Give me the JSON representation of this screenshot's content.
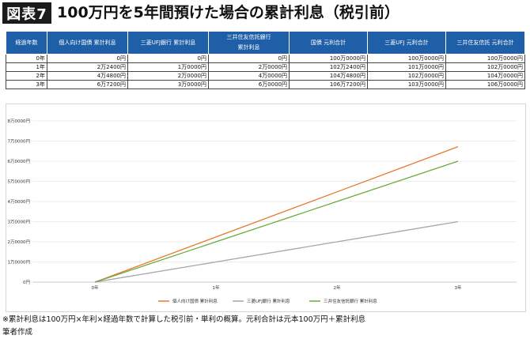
{
  "header": {
    "badge": "図表7",
    "title": "100万円を5年間預けた場合の累計利息（税引前）"
  },
  "table": {
    "columns": [
      "経過年数",
      "個人向け国債 累計利息",
      "三菱UFJ銀行 累計利息",
      "三井住友信託銀行\n累計利息",
      "国債 元利合計",
      "三菱UFJ 元利合計",
      "三井住友信託 元利合計"
    ],
    "rows": [
      [
        "0年",
        "0円",
        "0円",
        "0円",
        "100万0000円",
        "100万0000円",
        "100万0000円"
      ],
      [
        "1年",
        "2万2400円",
        "1万0000円",
        "2万0000円",
        "102万2400円",
        "101万0000円",
        "102万0000円"
      ],
      [
        "2年",
        "4万4800円",
        "2万0000円",
        "4万0000円",
        "104万4800円",
        "102万0000円",
        "104万0000円"
      ],
      [
        "3年",
        "6万7200円",
        "3万0000円",
        "6万0000円",
        "106万7200円",
        "103万0000円",
        "106万0000円"
      ]
    ]
  },
  "chart_data": {
    "type": "line",
    "categories": [
      "0年",
      "1年",
      "2年",
      "3年"
    ],
    "series": [
      {
        "name": "個人向け国債 累計利息",
        "values": [
          0,
          22400,
          44800,
          67200
        ],
        "color": "#e8782a"
      },
      {
        "name": "三菱UFJ銀行 累計利息",
        "values": [
          0,
          10000,
          20000,
          30000
        ],
        "color": "#a6a6a6"
      },
      {
        "name": "三井住友信託銀行 累計利息",
        "values": [
          0,
          20000,
          40000,
          60000
        ],
        "color": "#6aaa3c"
      }
    ],
    "y_ticks": [
      0,
      10000,
      20000,
      30000,
      40000,
      50000,
      60000,
      70000,
      80000
    ],
    "y_tick_labels": [
      "0円",
      "1万0000円",
      "2万0000円",
      "3万0000円",
      "4万0000円",
      "5万0000円",
      "6万0000円",
      "7万0000円",
      "8万0000円"
    ],
    "ylim": [
      0,
      80000
    ],
    "grid": true,
    "legend_position": "bottom"
  },
  "footnote": "※累計利息は100万円×年利×経過年数で計算した税引前・単利の概算。元利合計は元本100万円＋累計利息",
  "source": "筆者作成"
}
